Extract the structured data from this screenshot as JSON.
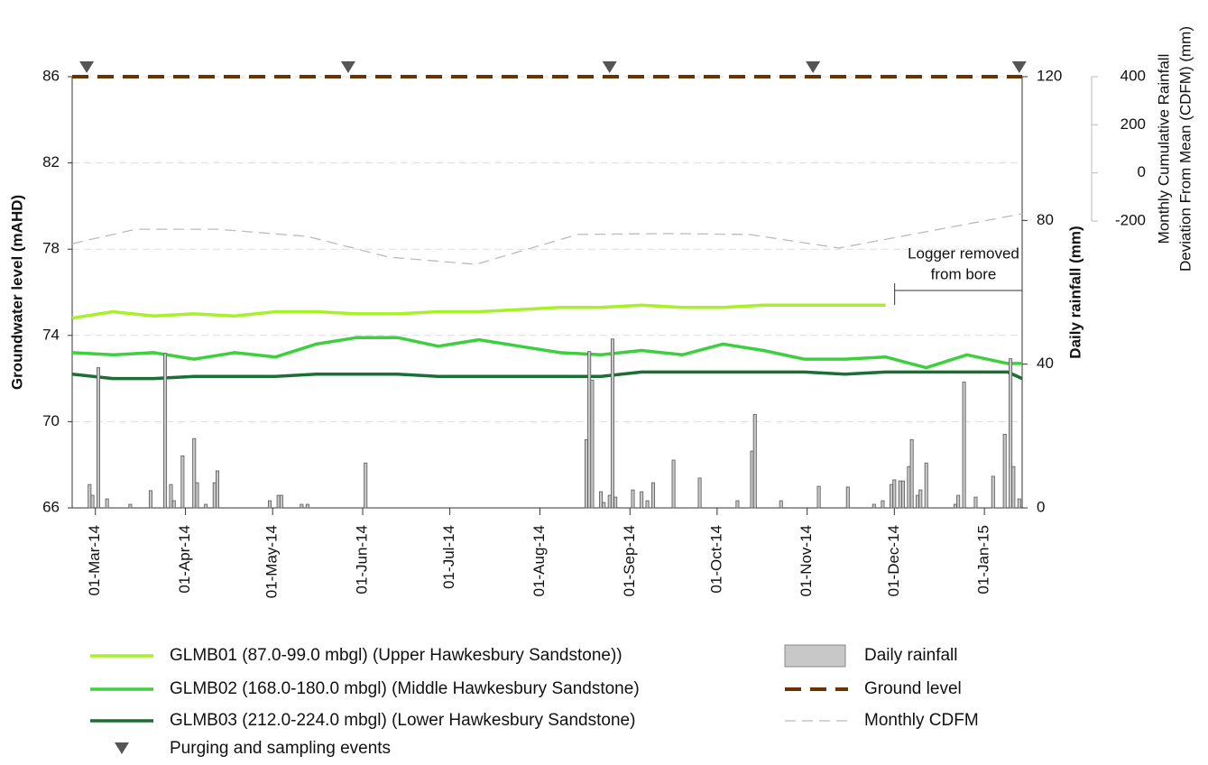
{
  "chart_data": {
    "type": "line",
    "xlim": [
      "2014-02-21",
      "2015-01-14"
    ],
    "xticks": [
      {
        "value": "2014-03-01",
        "label": "01-Mar-14"
      },
      {
        "value": "2014-04-01",
        "label": "01-Apr-14"
      },
      {
        "value": "2014-05-01",
        "label": "01-May-14"
      },
      {
        "value": "2014-06-01",
        "label": "01-Jun-14"
      },
      {
        "value": "2014-07-01",
        "label": "01-Jul-14"
      },
      {
        "value": "2014-08-01",
        "label": "01-Aug-14"
      },
      {
        "value": "2014-09-01",
        "label": "01-Sep-14"
      },
      {
        "value": "2014-10-01",
        "label": "01-Oct-14"
      },
      {
        "value": "2014-11-01",
        "label": "01-Nov-14"
      },
      {
        "value": "2014-12-01",
        "label": "01-Dec-14"
      },
      {
        "value": "2015-01-01",
        "label": "01-Jan-15"
      }
    ],
    "ylim": [
      66,
      86
    ],
    "yticks": [
      66,
      70,
      74,
      78,
      82,
      86
    ],
    "y_label": "Groundwater level (mAHD)",
    "y2lim": [
      0,
      120
    ],
    "y2ticks": [
      0,
      40,
      80,
      120
    ],
    "y2_label": "Daily rainfall (mm)",
    "y3lim": [
      -200,
      400
    ],
    "y3ticks": [
      -200,
      0,
      200,
      400
    ],
    "y3_label": [
      "Monthly Cumulative Rainfall",
      "Deviation From Mean (CDFM) (mm)"
    ],
    "grid": true,
    "x": [
      "2014-02-21",
      "2014-03-07",
      "2014-03-21",
      "2014-04-04",
      "2014-04-18",
      "2014-05-02",
      "2014-05-16",
      "2014-05-30",
      "2014-06-13",
      "2014-06-27",
      "2014-07-11",
      "2014-07-25",
      "2014-08-08",
      "2014-08-22",
      "2014-09-05",
      "2014-09-19",
      "2014-10-03",
      "2014-10-17",
      "2014-10-31",
      "2014-11-14",
      "2014-11-28",
      "2014-12-12",
      "2014-12-26",
      "2015-01-09",
      "2015-01-14"
    ],
    "series": [
      {
        "name": "GLMB01 (87.0-99.0 mbgl) (Upper Hawkesbury Sandstone))",
        "type": "line",
        "color": "#a8f02a",
        "values": [
          74.8,
          75.1,
          74.9,
          75.0,
          74.9,
          75.1,
          75.1,
          75.0,
          75.0,
          75.1,
          75.1,
          75.2,
          75.3,
          75.3,
          75.4,
          75.3,
          75.3,
          75.4,
          75.4,
          75.4,
          75.4,
          null,
          null,
          null,
          null
        ]
      },
      {
        "name": "GLMB02 (168.0-180.0 mbgl) (Middle Hawkesbury Sandstone)",
        "type": "line",
        "color": "#3ecf3e",
        "values": [
          73.2,
          73.1,
          73.2,
          72.9,
          73.2,
          73.0,
          73.6,
          73.9,
          73.9,
          73.5,
          73.8,
          73.5,
          73.2,
          73.1,
          73.3,
          73.1,
          73.6,
          73.3,
          72.9,
          72.9,
          73.0,
          72.5,
          73.1,
          72.7,
          72.7
        ]
      },
      {
        "name": "GLMB03 (212.0-224.0 mbgl) (Lower Hawkesbury Sandstone)",
        "type": "line",
        "color": "#1b6e34",
        "values": [
          72.2,
          72.0,
          72.0,
          72.1,
          72.1,
          72.1,
          72.2,
          72.2,
          72.2,
          72.1,
          72.1,
          72.1,
          72.1,
          72.1,
          72.3,
          72.3,
          72.3,
          72.3,
          72.3,
          72.2,
          72.3,
          72.3,
          72.3,
          72.3,
          72.0
        ]
      },
      {
        "name": "Daily rainfall",
        "type": "bar",
        "axis": "y2",
        "color": "#c8c8c8",
        "x": [
          "2014-02-27",
          "2014-02-28",
          "2014-03-02",
          "2014-03-05",
          "2014-03-13",
          "2014-03-20",
          "2014-03-25",
          "2014-03-27",
          "2014-03-28",
          "2014-03-31",
          "2014-04-04",
          "2014-04-05",
          "2014-04-08",
          "2014-04-11",
          "2014-04-12",
          "2014-04-30",
          "2014-05-03",
          "2014-05-04",
          "2014-05-11",
          "2014-05-13",
          "2014-06-02",
          "2014-08-17",
          "2014-08-18",
          "2014-08-19",
          "2014-08-22",
          "2014-08-23",
          "2014-08-25",
          "2014-08-26",
          "2014-08-27",
          "2014-09-02",
          "2014-09-05",
          "2014-09-07",
          "2014-09-09",
          "2014-09-16",
          "2014-09-25",
          "2014-10-08",
          "2014-10-13",
          "2014-10-14",
          "2014-10-23",
          "2014-11-05",
          "2014-11-15",
          "2014-11-24",
          "2014-11-27",
          "2014-11-30",
          "2014-12-01",
          "2014-12-03",
          "2014-12-04",
          "2014-12-06",
          "2014-12-07",
          "2014-12-09",
          "2014-12-10",
          "2014-12-12",
          "2014-12-22",
          "2014-12-23",
          "2014-12-25",
          "2014-12-29",
          "2015-01-04",
          "2015-01-08",
          "2015-01-10",
          "2015-01-11",
          "2015-01-13"
        ],
        "values": [
          6.5,
          3.5,
          39,
          2.5,
          1,
          4.8,
          43,
          6.5,
          2,
          14.5,
          19.3,
          7,
          1,
          7,
          10.3,
          2,
          3.5,
          3.5,
          1,
          1,
          12.5,
          19,
          43.5,
          35.5,
          4.5,
          1.5,
          3.5,
          47,
          3,
          5,
          4.5,
          2,
          7,
          13.3,
          8.3,
          2,
          15.8,
          26,
          2,
          6,
          5.8,
          1,
          2,
          6.5,
          7.8,
          7.5,
          7.5,
          11.5,
          19,
          3.5,
          5,
          12.5,
          1,
          3.5,
          35,
          3,
          8.8,
          20.5,
          41.5,
          11.5,
          2.5
        ]
      },
      {
        "name": "Ground level",
        "type": "line",
        "line_style": "dashed",
        "color": "#6b3300",
        "x": [
          "2014-02-21",
          "2015-01-14"
        ],
        "values": [
          86,
          86
        ]
      },
      {
        "name": "Monthly CDFM",
        "type": "line",
        "line_style": "dashed",
        "axis": "y3",
        "color": "#bbbbbb",
        "x": [
          "2014-02-21",
          "2014-03-15",
          "2014-04-12",
          "2014-05-13",
          "2014-06-10",
          "2014-07-10",
          "2014-08-14",
          "2014-09-14",
          "2014-10-12",
          "2014-11-12",
          "2015-01-14"
        ],
        "values": [
          -294,
          -234,
          -234,
          -264,
          -350,
          -380,
          -256,
          -252,
          -256,
          -312,
          -170
        ]
      }
    ],
    "events": {
      "name": "Purging and sampling events",
      "color": "#555555",
      "x": [
        "2014-02-26",
        "2014-05-27",
        "2014-08-25",
        "2014-11-03",
        "2015-01-13"
      ]
    },
    "annotation": [
      "Logger removed",
      "from bore"
    ]
  }
}
